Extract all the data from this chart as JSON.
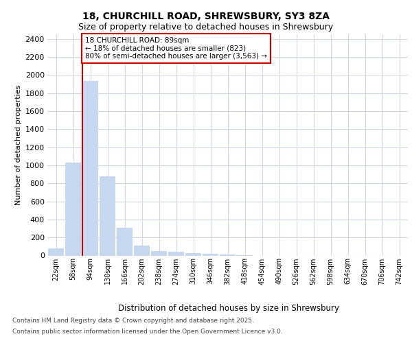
{
  "title_line1": "18, CHURCHILL ROAD, SHREWSBURY, SY3 8ZA",
  "title_line2": "Size of property relative to detached houses in Shrewsbury",
  "xlabel": "Distribution of detached houses by size in Shrewsbury",
  "ylabel": "Number of detached properties",
  "categories": [
    "22sqm",
    "58sqm",
    "94sqm",
    "130sqm",
    "166sqm",
    "202sqm",
    "238sqm",
    "274sqm",
    "310sqm",
    "346sqm",
    "382sqm",
    "418sqm",
    "454sqm",
    "490sqm",
    "526sqm",
    "562sqm",
    "598sqm",
    "634sqm",
    "670sqm",
    "706sqm",
    "742sqm"
  ],
  "values": [
    80,
    1030,
    1930,
    880,
    310,
    110,
    50,
    45,
    30,
    20,
    10,
    5,
    0,
    0,
    0,
    0,
    0,
    0,
    0,
    0,
    0
  ],
  "bar_color": "#c5d8f0",
  "grid_color": "#d0d8e8",
  "background_color": "#ffffff",
  "ylim": [
    0,
    2450
  ],
  "yticks": [
    0,
    200,
    400,
    600,
    800,
    1000,
    1200,
    1400,
    1600,
    1800,
    2000,
    2200,
    2400
  ],
  "red_line_index": 2,
  "annotation_title": "18 CHURCHILL ROAD: 89sqm",
  "annotation_line1": "← 18% of detached houses are smaller (823)",
  "annotation_line2": "80% of semi-detached houses are larger (3,563) →",
  "annotation_box_color": "#ffffff",
  "annotation_box_edge": "#cc0000",
  "red_line_color": "#cc0000",
  "footer_line1": "Contains HM Land Registry data © Crown copyright and database right 2025.",
  "footer_line2": "Contains public sector information licensed under the Open Government Licence v3.0.",
  "title1_fontsize": 10,
  "title2_fontsize": 9,
  "ylabel_fontsize": 8,
  "xlabel_fontsize": 8.5,
  "ytick_fontsize": 8,
  "xtick_fontsize": 7,
  "footer_fontsize": 6.5,
  "ann_fontsize": 7.5
}
